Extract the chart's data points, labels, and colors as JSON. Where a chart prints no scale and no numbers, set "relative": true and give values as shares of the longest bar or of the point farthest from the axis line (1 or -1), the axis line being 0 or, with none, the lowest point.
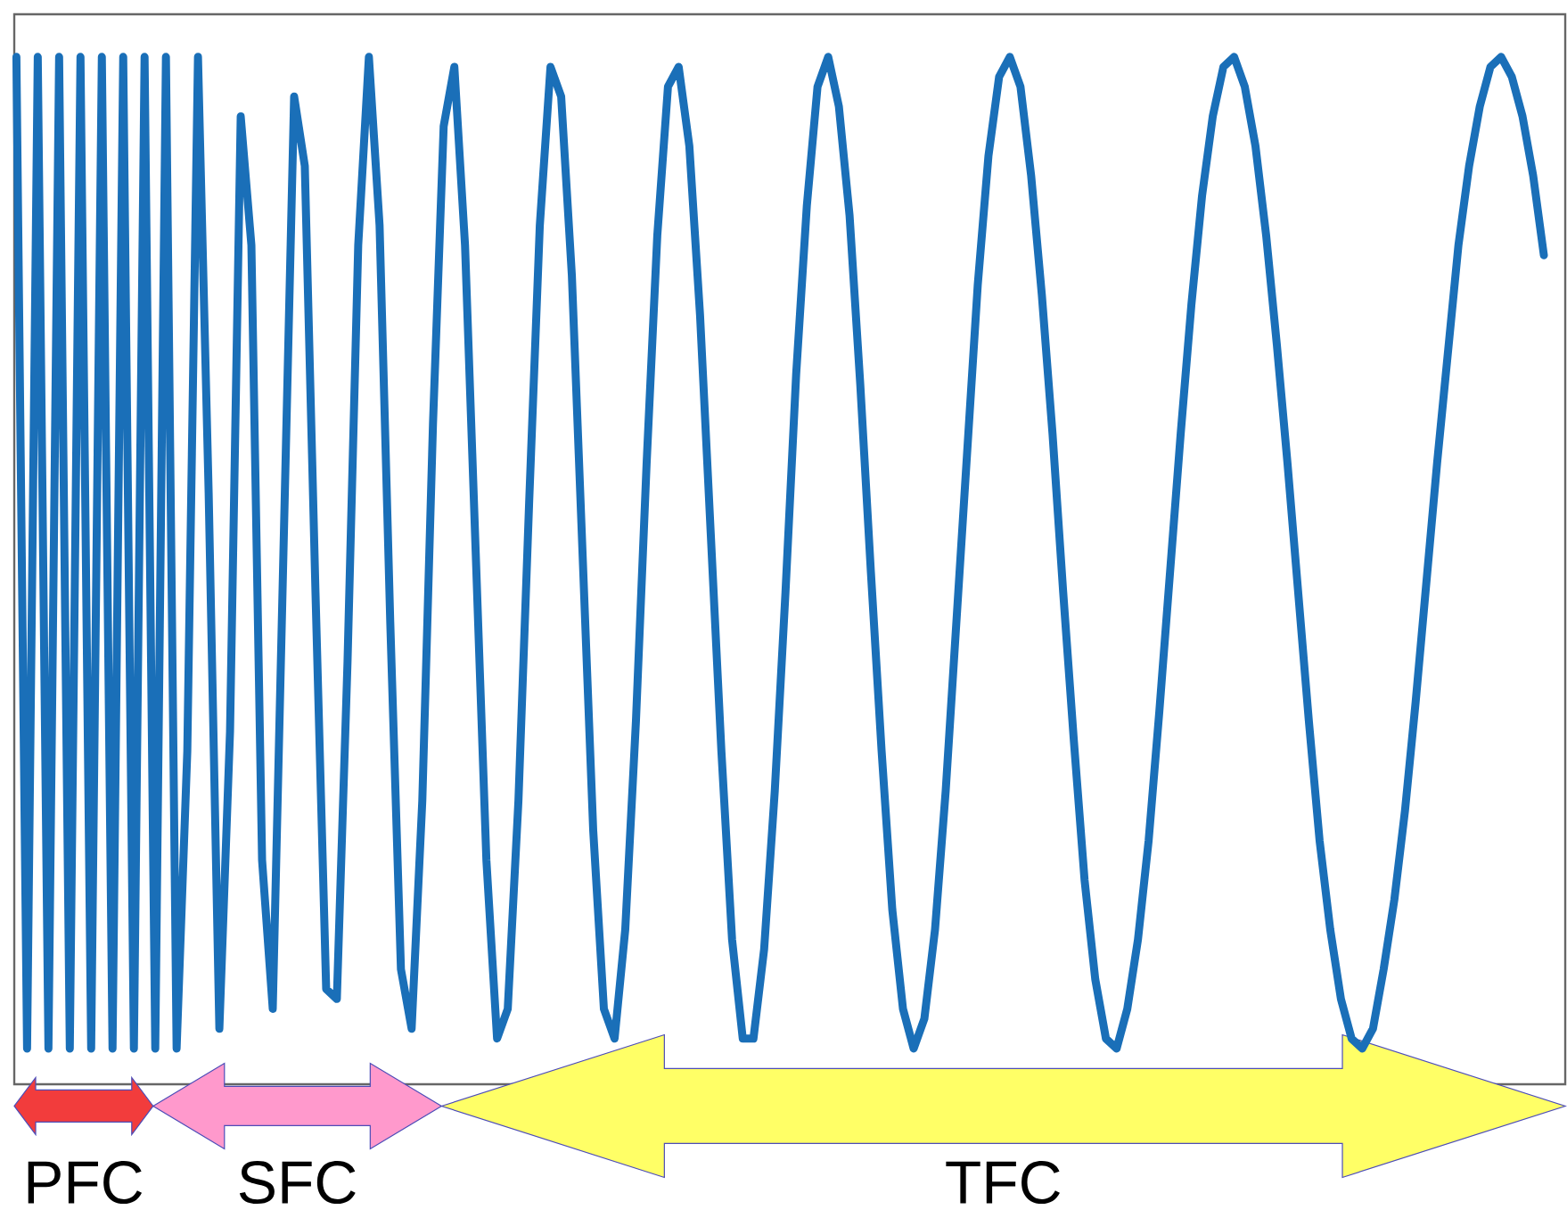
{
  "chart_data": {
    "type": "line",
    "relative": true,
    "categories": [
      null,
      null,
      null,
      null,
      null,
      null,
      null,
      null,
      null,
      null,
      null,
      null,
      null,
      null,
      null,
      null,
      null,
      null,
      null,
      null,
      null,
      null,
      null,
      null,
      null,
      null,
      null,
      null,
      null,
      null,
      null,
      null,
      null,
      null,
      null,
      null,
      null,
      null,
      null,
      null,
      null,
      null,
      null,
      null,
      null,
      null,
      null,
      null,
      null,
      null,
      null,
      null,
      null,
      null,
      null,
      null,
      null,
      null,
      null,
      null,
      null,
      null,
      null,
      null,
      null,
      null,
      null,
      null,
      null,
      null,
      null,
      null,
      null,
      null,
      null,
      null,
      null,
      null,
      null,
      null,
      null,
      null,
      null,
      null,
      null,
      null,
      null,
      null,
      null,
      null,
      null,
      null,
      null,
      null,
      null,
      null,
      null,
      null,
      null,
      null,
      null,
      null,
      null,
      null,
      null,
      null,
      null,
      null,
      null,
      null,
      null,
      null,
      null,
      null,
      null,
      null,
      null,
      null,
      null,
      null,
      null,
      null,
      null,
      null,
      null,
      null,
      null,
      null,
      null,
      null,
      null,
      null,
      null,
      null,
      null,
      null,
      null,
      null,
      null,
      null,
      null,
      null,
      null,
      null
    ],
    "series": [
      {
        "color": "#1a6fb8",
        "values": [
          1,
          0,
          1,
          0,
          1,
          0,
          1,
          0,
          1,
          0,
          1,
          0,
          1,
          0,
          1,
          0,
          0.3,
          1,
          0.56,
          0.02,
          0.32,
          0.94,
          0.81,
          0.19,
          0.04,
          0.5,
          0.96,
          0.89,
          0.46,
          0.06,
          0.05,
          0.39,
          0.81,
          1,
          0.83,
          0.43,
          0.08,
          0.02,
          0.25,
          0.63,
          0.93,
          0.99,
          0.81,
          0.5,
          0.19,
          0.01,
          0.04,
          0.25,
          0.55,
          0.83,
          0.99,
          0.96,
          0.78,
          0.5,
          0.22,
          0.04,
          0.01,
          0.12,
          0.33,
          0.59,
          0.82,
          0.97,
          0.99,
          0.91,
          0.74,
          0.52,
          0.3,
          0.11,
          0.01,
          0.01,
          0.1,
          0.26,
          0.46,
          0.68,
          0.85,
          0.97,
          1,
          0.95,
          0.84,
          0.67,
          0.48,
          0.3,
          0.14,
          0.04,
          0,
          0.03,
          0.12,
          0.26,
          0.43,
          0.6,
          0.77,
          0.9,
          0.98,
          1,
          0.97,
          0.88,
          0.76,
          0.62,
          0.46,
          0.31,
          0.17,
          0.07,
          0.01,
          0,
          0.04,
          0.11,
          0.21,
          0.34,
          0.48,
          0.62,
          0.75,
          0.86,
          0.94,
          0.99,
          1,
          0.97,
          0.91,
          0.82,
          0.71,
          0.59,
          0.46,
          0.33,
          0.21,
          0.12,
          0.05,
          0.01,
          0,
          0.02,
          0.08,
          0.15,
          0.24,
          0.35,
          0.47,
          0.59,
          0.7,
          0.81,
          0.89,
          0.95,
          0.99,
          1,
          0.98,
          0.94,
          0.88,
          0.8
        ]
      }
    ],
    "annotations": [
      "PFC",
      "SFC",
      "TFC"
    ],
    "marker": "none",
    "line_style": "solid"
  }
}
